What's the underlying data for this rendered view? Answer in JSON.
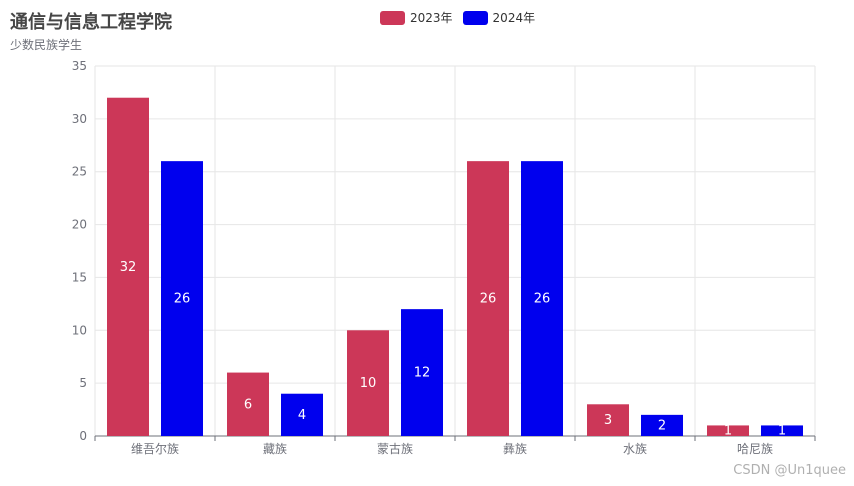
{
  "chart_data": {
    "type": "bar",
    "title": "通信与信息工程学院",
    "subtitle": "少数民族学生",
    "categories": [
      "维吾尔族",
      "藏族",
      "蒙古族",
      "彝族",
      "水族",
      "哈尼族"
    ],
    "series": [
      {
        "name": "2023年",
        "values": [
          32,
          6,
          10,
          26,
          3,
          1
        ],
        "color": "#cc3758"
      },
      {
        "name": "2024年",
        "values": [
          26,
          4,
          12,
          26,
          2,
          1
        ],
        "color": "#0000ee"
      }
    ],
    "ylim": [
      0,
      35
    ],
    "yticks": [
      0,
      5,
      10,
      15,
      20,
      25,
      30,
      35
    ],
    "grid": true,
    "legend_position": "top-center"
  },
  "watermark": "CSDN @Un1quee"
}
